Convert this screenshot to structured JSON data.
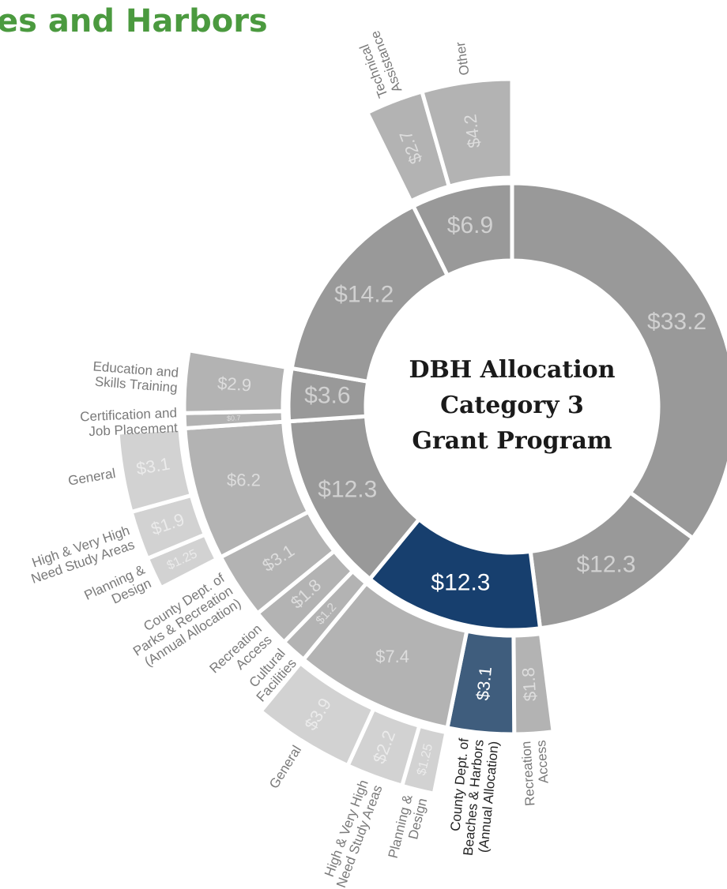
{
  "chart_data": {
    "type": "sunburst",
    "title": "es and Harbors",
    "center_label": [
      "DBH Allocation",
      "Category 3",
      "Grant Program"
    ],
    "segments": [
      {
        "value": 33.2,
        "value_label": "$33.2",
        "color": "#999999"
      },
      {
        "value": 12.3,
        "value_label": "$12.3",
        "color": "#999999"
      },
      {
        "value": 12.3,
        "value_label": "$12.3",
        "color": "#173f6e",
        "children": [
          {
            "value": 1.8,
            "value_label": "$1.8",
            "color": "#b3b3b3",
            "label": [
              "Recreation",
              "Access"
            ]
          },
          {
            "value": 3.1,
            "value_label": "$3.1",
            "color": "#3f5d7d",
            "label": [
              "County Dept. of",
              "Beaches & Harbors",
              "(Annual Allocation)"
            ]
          },
          {
            "value": 7.4,
            "value_label": "$7.4",
            "color": "#b3b3b3",
            "children": [
              {
                "value": 1.25,
                "value_label": "$1.25",
                "color": "#d2d2d2",
                "label": [
                  "Planning &",
                  "Design"
                ]
              },
              {
                "value": 2.2,
                "value_label": "$2.2",
                "color": "#d2d2d2",
                "label": [
                  "High & Very High",
                  "Need Study Areas"
                ]
              },
              {
                "value": 3.9,
                "value_label": "$3.9",
                "color": "#d2d2d2",
                "label": [
                  "General"
                ]
              }
            ]
          }
        ]
      },
      {
        "value": 12.3,
        "value_label": "$12.3",
        "color": "#999999",
        "children": [
          {
            "value": 1.2,
            "value_label": "$1.2",
            "color": "#b3b3b3",
            "label": [
              "Cultural",
              "Facilities"
            ]
          },
          {
            "value": 1.8,
            "value_label": "$1.8",
            "color": "#b3b3b3",
            "label": [
              "Recreation",
              "Access"
            ]
          },
          {
            "value": 3.1,
            "value_label": "$3.1",
            "color": "#b3b3b3",
            "label": [
              "County Dept. of",
              "Parks & Recreation",
              "(Annual Allocation)"
            ]
          },
          {
            "value": 6.2,
            "value_label": "$6.2",
            "color": "#b3b3b3",
            "children": [
              {
                "value": 1.25,
                "value_label": "$1.25",
                "color": "#d2d2d2",
                "label": [
                  "Planning &",
                  "Design"
                ]
              },
              {
                "value": 1.9,
                "value_label": "$1.9",
                "color": "#d2d2d2",
                "label": [
                  "High & Very High",
                  "Need Study Areas"
                ]
              },
              {
                "value": 3.1,
                "value_label": "$3.1",
                "color": "#d2d2d2",
                "label": [
                  "General"
                ]
              }
            ]
          }
        ]
      },
      {
        "value": 3.6,
        "value_label": "$3.6",
        "color": "#999999",
        "children": [
          {
            "value": 0.7,
            "value_label": "$0.7",
            "color": "#b3b3b3",
            "label": [
              "Certification and",
              "Job Placement"
            ]
          },
          {
            "value": 2.9,
            "value_label": "$2.9",
            "color": "#b3b3b3",
            "label": [
              "Education and",
              "Skills Training"
            ]
          }
        ]
      },
      {
        "value": 14.2,
        "value_label": "$14.2",
        "color": "#999999"
      },
      {
        "value": 6.9,
        "value_label": "$6.9",
        "color": "#999999",
        "children": [
          {
            "value": 2.7,
            "value_label": "$2.7",
            "color": "#b3b3b3",
            "label": [
              "Technical",
              "Assistance"
            ]
          },
          {
            "value": 4.2,
            "value_label": "$4.2",
            "color": "#b3b3b3",
            "label": [
              "Other"
            ]
          }
        ]
      }
    ]
  }
}
